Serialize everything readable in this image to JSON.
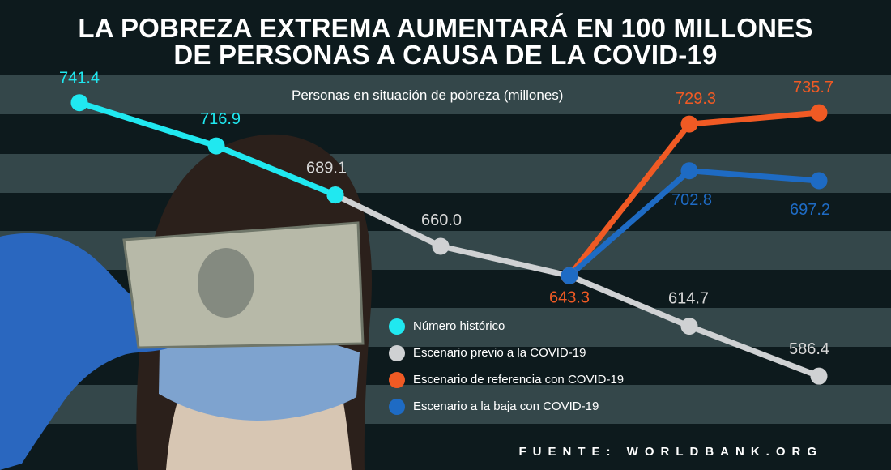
{
  "title_line1": "LA POBREZA EXTREMA AUMENTARÁ EN 100 MILLONES",
  "title_line2": "DE PERSONAS A CAUSA DE LA COVID-19",
  "subtitle": "Personas en situación de pobreza (millones)",
  "source": "FUENTE: WORLDBANK.ORG",
  "colors": {
    "background": "#0d1a1d",
    "band": "#34474a",
    "historic": "#20e8f0",
    "pre_covid": "#cfd1d3",
    "baseline_covid": "#f05a24",
    "downside_covid": "#1e6bc4",
    "historic_label": "#20e8f0",
    "pre_label": "#d8d8d8",
    "baseline_label": "#f05a24",
    "downside_label": "#1e6bc4"
  },
  "legend": [
    {
      "label": "Número histórico",
      "color": "#20e8f0"
    },
    {
      "label": "Escenario previo a la COVID-19",
      "color": "#cfd1d3"
    },
    {
      "label": "Escenario de referencia con COVID-19",
      "color": "#f05a24"
    },
    {
      "label": "Escenario a la  baja con COVID-19",
      "color": "#1e6bc4"
    }
  ],
  "chart_data": {
    "type": "line",
    "title": "LA POBREZA EXTREMA AUMENTARÁ EN 100 MILLONES DE PERSONAS A CAUSA DE LA COVID-19",
    "ylabel": "Personas en situación de pobreza (millones)",
    "ylim": [
      575,
      750
    ],
    "grid": true,
    "legend_position": "bottom-center",
    "x": [
      0,
      1,
      2,
      3,
      4,
      5,
      6
    ],
    "series": [
      {
        "name": "Número histórico",
        "points": [
          {
            "x": 0,
            "y": 741.4,
            "label": "741.4"
          },
          {
            "x": 1,
            "y": 716.9,
            "label": "716.9"
          },
          {
            "x": 2,
            "y": 689.1
          }
        ],
        "color": "#20e8f0"
      },
      {
        "name": "Escenario previo a la COVID-19",
        "points": [
          {
            "x": 2,
            "y": 689.1,
            "label": "689.1"
          },
          {
            "x": 3,
            "y": 660.0,
            "label": "660.0"
          },
          {
            "x": 4,
            "y": 643.3
          },
          {
            "x": 5,
            "y": 614.7,
            "label": "614.7"
          },
          {
            "x": 6,
            "y": 586.4,
            "label": "586.4"
          }
        ],
        "color": "#cfd1d3"
      },
      {
        "name": "Escenario de referencia con COVID-19",
        "points": [
          {
            "x": 4,
            "y": 643.3,
            "label": "643.3"
          },
          {
            "x": 5,
            "y": 729.3,
            "label": "729.3"
          },
          {
            "x": 6,
            "y": 735.7,
            "label": "735.7"
          }
        ],
        "color": "#f05a24"
      },
      {
        "name": "Escenario a la  baja con COVID-19",
        "points": [
          {
            "x": 4,
            "y": 643.3
          },
          {
            "x": 5,
            "y": 702.8,
            "label": "702.8"
          },
          {
            "x": 6,
            "y": 697.2,
            "label": "697.2"
          }
        ],
        "color": "#1e6bc4"
      }
    ]
  }
}
